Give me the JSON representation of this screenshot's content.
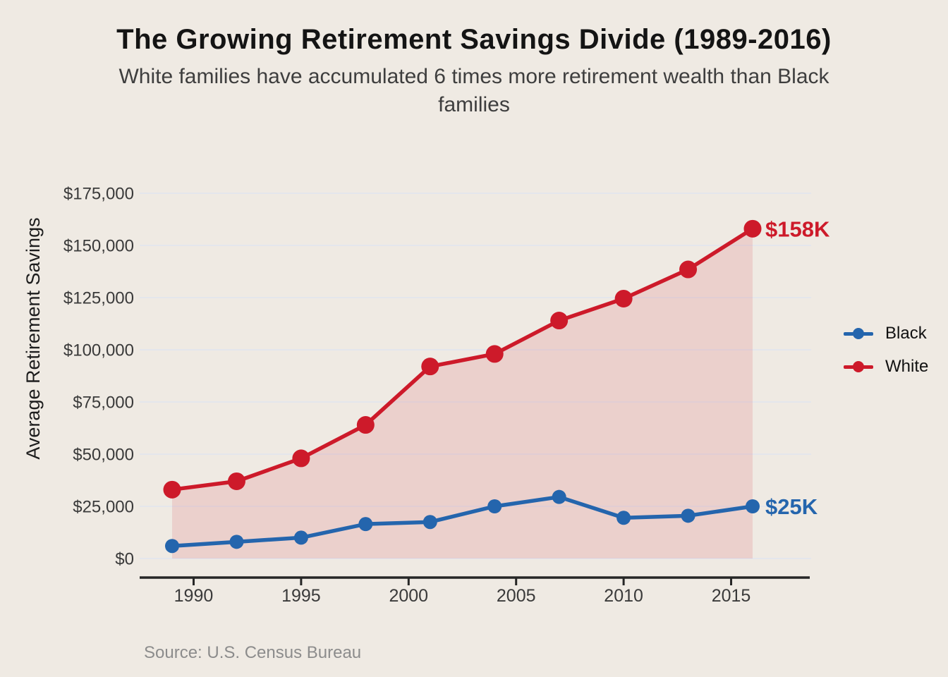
{
  "header": {
    "title": "The Growing Retirement Savings Divide (1989-2016)",
    "subtitle": "White families have accumulated 6 times more retirement wealth than Black families"
  },
  "y_axis_title": "Average Retirement Savings",
  "source_note": "Source: U.S. Census Bureau",
  "legend": {
    "position": "right",
    "items": [
      {
        "label": "Black",
        "color": "#2465AD"
      },
      {
        "label": "White",
        "color": "#CD1A2A"
      }
    ]
  },
  "colors": {
    "background": "#EFEAE3",
    "grid": "#E4E6EC",
    "axis_line": "#262626",
    "tick_text": "#3A3A3A",
    "title_text": "#141414",
    "subtitle_text": "#3E3E3E",
    "source_text": "#8C8C8C",
    "white_series": "#CD1A2A",
    "black_series": "#2465AD"
  },
  "chart_data": {
    "type": "line",
    "title": "The Growing Retirement Savings Divide (1989-2016)",
    "subtitle": "White families have accumulated 6 times more retirement wealth than Black families",
    "xlabel": "",
    "ylabel": "Average Retirement Savings",
    "x": [
      1989,
      1992,
      1995,
      1998,
      2001,
      2004,
      2007,
      2010,
      2013,
      2016
    ],
    "series": [
      {
        "name": "White",
        "color": "#CD1A2A",
        "marker_radius": 12.5,
        "line_width": 5.5,
        "area_fill": true,
        "end_label": "$158K",
        "values": [
          33000,
          37000,
          48000,
          64000,
          92000,
          98000,
          114000,
          124500,
          138500,
          158000
        ]
      },
      {
        "name": "Black",
        "color": "#2465AD",
        "marker_radius": 10,
        "line_width": 5.5,
        "area_fill": false,
        "end_label": "$25K",
        "values": [
          6000,
          8000,
          10000,
          16500,
          17500,
          25000,
          29500,
          19500,
          20500,
          25000
        ]
      }
    ],
    "area_fill_opacity": 0.12,
    "ylim": [
      0,
      185000
    ],
    "xlim": [
      1987.5,
      2018.5
    ],
    "grid": "horizontal",
    "legend_position": "right",
    "y_ticks": [
      {
        "value": 0,
        "label": "$0"
      },
      {
        "value": 25000,
        "label": "$25,000"
      },
      {
        "value": 50000,
        "label": "$50,000"
      },
      {
        "value": 75000,
        "label": "$75,000"
      },
      {
        "value": 100000,
        "label": "$100,000"
      },
      {
        "value": 125000,
        "label": "$125,000"
      },
      {
        "value": 150000,
        "label": "$150,000"
      },
      {
        "value": 175000,
        "label": "$175,000"
      }
    ],
    "x_ticks": [
      {
        "value": 1990,
        "label": "1990"
      },
      {
        "value": 1995,
        "label": "1995"
      },
      {
        "value": 2000,
        "label": "2000"
      },
      {
        "value": 2005,
        "label": "2005"
      },
      {
        "value": 2010,
        "label": "2010"
      },
      {
        "value": 2015,
        "label": "2015"
      }
    ],
    "source": "Source: U.S. Census Bureau"
  }
}
